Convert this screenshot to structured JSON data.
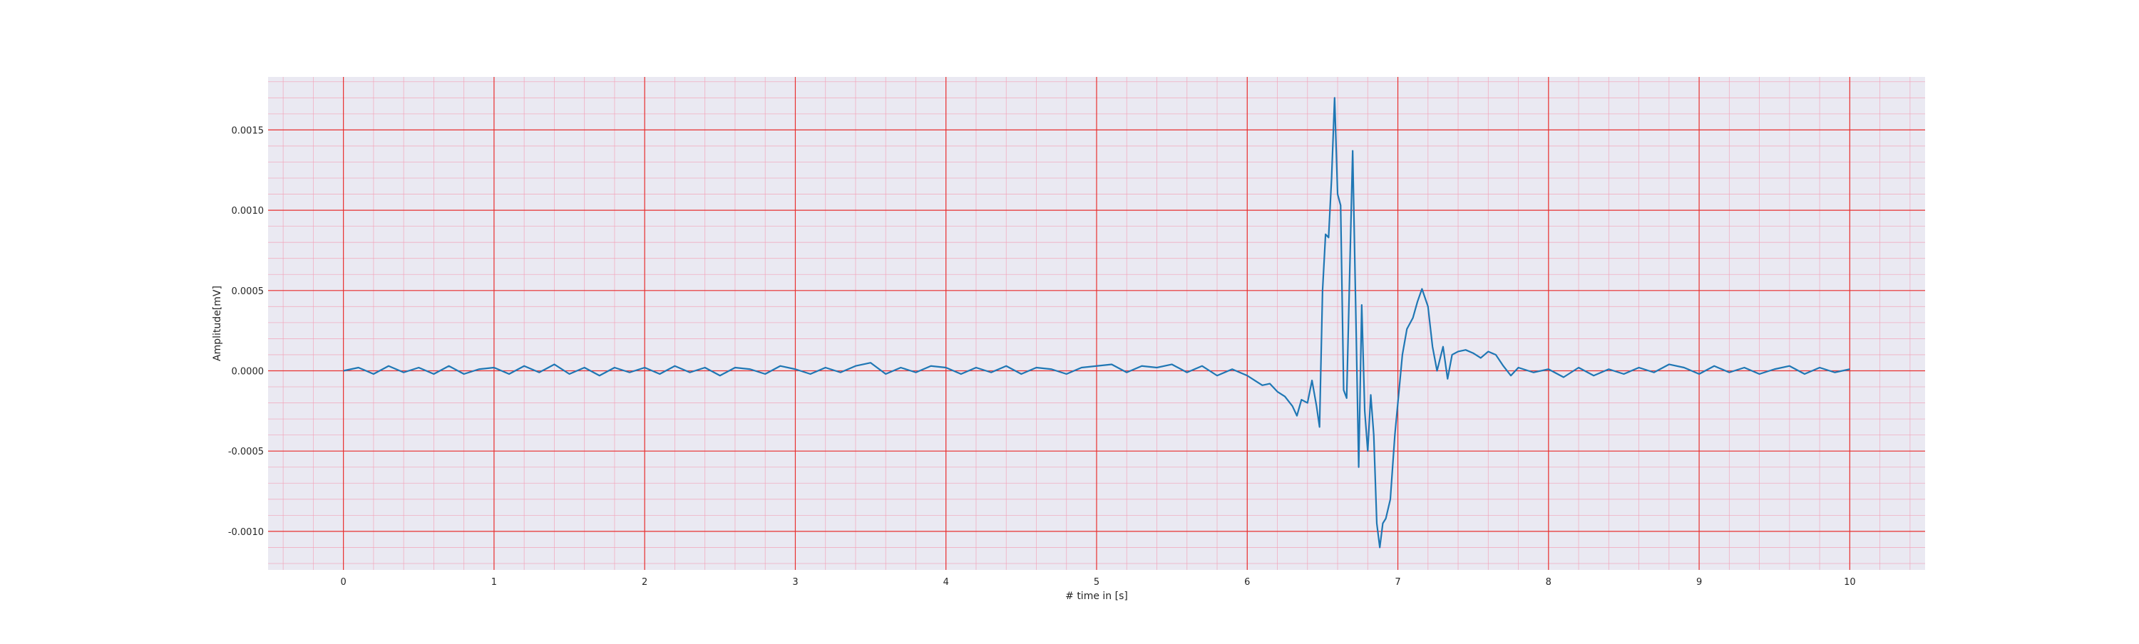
{
  "chart_data": {
    "type": "line",
    "title": "",
    "xlabel": "# time in [s]",
    "ylabel": "Amplitude[mV]",
    "xlim": [
      -0.5,
      10.5
    ],
    "ylim": [
      -0.00124,
      0.00183
    ],
    "x_ticks": [
      0,
      1,
      2,
      3,
      4,
      5,
      6,
      7,
      8,
      9,
      10
    ],
    "x_tick_labels": [
      "0",
      "1",
      "2",
      "3",
      "4",
      "5",
      "6",
      "7",
      "8",
      "9",
      "10"
    ],
    "y_ticks": [
      -0.001,
      -0.0005,
      0.0,
      0.0005,
      0.001,
      0.0015
    ],
    "y_tick_labels": [
      "-0.0010",
      "-0.0005",
      "0.0000",
      "0.0005",
      "0.0010",
      "0.0015"
    ],
    "grid": true,
    "grid_major_color": "#e8302f",
    "grid_minor_color": "#f2a0b6",
    "background_color": "#eae9f2",
    "series": [
      {
        "color": "#1f77b4",
        "x": [
          0.0,
          0.1,
          0.2,
          0.3,
          0.4,
          0.5,
          0.6,
          0.7,
          0.8,
          0.9,
          1.0,
          1.1,
          1.2,
          1.3,
          1.4,
          1.5,
          1.6,
          1.7,
          1.8,
          1.9,
          2.0,
          2.1,
          2.2,
          2.3,
          2.4,
          2.5,
          2.6,
          2.7,
          2.8,
          2.9,
          3.0,
          3.1,
          3.2,
          3.3,
          3.4,
          3.5,
          3.6,
          3.7,
          3.8,
          3.9,
          4.0,
          4.1,
          4.2,
          4.3,
          4.4,
          4.5,
          4.6,
          4.7,
          4.8,
          4.9,
          5.0,
          5.1,
          5.2,
          5.3,
          5.4,
          5.5,
          5.6,
          5.7,
          5.8,
          5.9,
          6.0,
          6.05,
          6.1,
          6.15,
          6.2,
          6.25,
          6.3,
          6.33,
          6.36,
          6.4,
          6.43,
          6.46,
          6.48,
          6.5,
          6.52,
          6.54,
          6.56,
          6.58,
          6.6,
          6.62,
          6.64,
          6.66,
          6.68,
          6.7,
          6.72,
          6.74,
          6.76,
          6.78,
          6.8,
          6.82,
          6.84,
          6.86,
          6.88,
          6.9,
          6.92,
          6.95,
          6.98,
          7.0,
          7.03,
          7.06,
          7.1,
          7.13,
          7.16,
          7.2,
          7.23,
          7.26,
          7.3,
          7.33,
          7.36,
          7.4,
          7.45,
          7.5,
          7.55,
          7.6,
          7.65,
          7.7,
          7.75,
          7.8,
          7.9,
          8.0,
          8.1,
          8.2,
          8.3,
          8.4,
          8.5,
          8.6,
          8.7,
          8.8,
          8.9,
          9.0,
          9.1,
          9.2,
          9.3,
          9.4,
          9.5,
          9.6,
          9.7,
          9.8,
          9.9,
          10.0
        ],
        "y": [
          0.0,
          2e-05,
          -2e-05,
          3e-05,
          -1e-05,
          2e-05,
          -2e-05,
          3e-05,
          -2e-05,
          1e-05,
          2e-05,
          -2e-05,
          3e-05,
          -1e-05,
          4e-05,
          -2e-05,
          2e-05,
          -3e-05,
          2e-05,
          -1e-05,
          2e-05,
          -2e-05,
          3e-05,
          -1e-05,
          2e-05,
          -3e-05,
          2e-05,
          1e-05,
          -2e-05,
          3e-05,
          1e-05,
          -2e-05,
          2e-05,
          -1e-05,
          3e-05,
          5e-05,
          -2e-05,
          2e-05,
          -1e-05,
          3e-05,
          2e-05,
          -2e-05,
          2e-05,
          -1e-05,
          3e-05,
          -2e-05,
          2e-05,
          1e-05,
          -2e-05,
          2e-05,
          3e-05,
          4e-05,
          -1e-05,
          3e-05,
          2e-05,
          4e-05,
          -1e-05,
          3e-05,
          -3e-05,
          1e-05,
          -3e-05,
          -6e-05,
          -9e-05,
          -8e-05,
          -0.00013,
          -0.00016,
          -0.00022,
          -0.00028,
          -0.00018,
          -0.0002,
          -6e-05,
          -0.00022,
          -0.00035,
          0.0005,
          0.00085,
          0.00083,
          0.0012,
          0.0017,
          0.0011,
          0.00103,
          -0.00012,
          -0.00017,
          0.0006,
          0.00137,
          0.0004,
          -0.0006,
          0.00041,
          -0.00025,
          -0.0005,
          -0.00015,
          -0.0004,
          -0.00095,
          -0.0011,
          -0.00095,
          -0.00092,
          -0.0008,
          -0.0004,
          -0.0002,
          0.0001,
          0.00026,
          0.00033,
          0.00043,
          0.00051,
          0.0004,
          0.00015,
          0.0,
          0.00015,
          -5e-05,
          0.0001,
          0.00012,
          0.00013,
          0.00011,
          8e-05,
          0.00012,
          0.0001,
          3e-05,
          -3e-05,
          2e-05,
          -1e-05,
          1e-05,
          -4e-05,
          2e-05,
          -3e-05,
          1e-05,
          -2e-05,
          2e-05,
          -1e-05,
          4e-05,
          2e-05,
          -2e-05,
          3e-05,
          -1e-05,
          2e-05,
          -2e-05,
          1e-05,
          3e-05,
          -2e-05,
          2e-05,
          -1e-05,
          1e-05
        ]
      }
    ]
  }
}
